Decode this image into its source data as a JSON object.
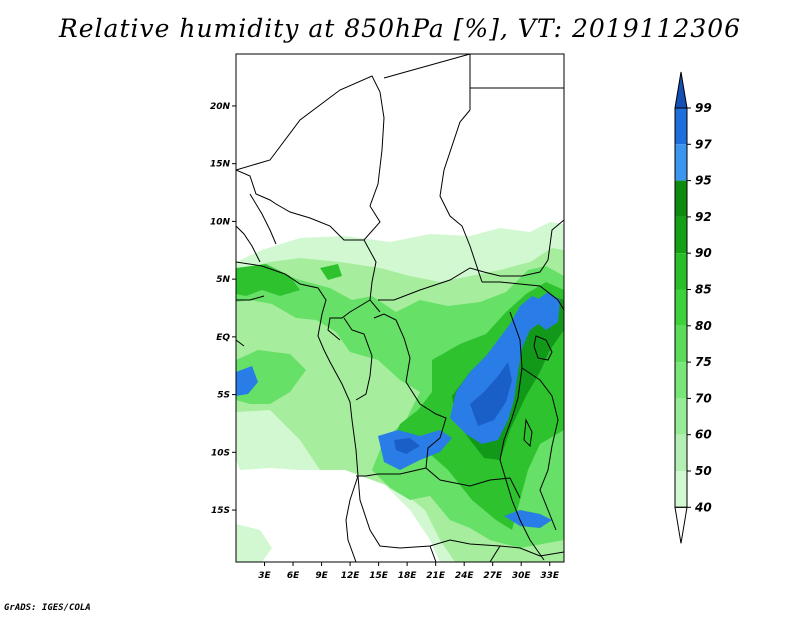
{
  "title": "Relative humidity at 850hPa [%], VT: 2019112306",
  "credit": "GrADS: IGES/COLA",
  "map": {
    "lon_range": [
      0,
      34.5
    ],
    "lat_range": [
      -19.5,
      24.5
    ],
    "lon_ticks": [
      {
        "value": 3,
        "label": "3E"
      },
      {
        "value": 6,
        "label": "6E"
      },
      {
        "value": 9,
        "label": "9E"
      },
      {
        "value": 12,
        "label": "12E"
      },
      {
        "value": 15,
        "label": "15E"
      },
      {
        "value": 18,
        "label": "18E"
      },
      {
        "value": 21,
        "label": "21E"
      },
      {
        "value": 24,
        "label": "24E"
      },
      {
        "value": 27,
        "label": "27E"
      },
      {
        "value": 30,
        "label": "30E"
      },
      {
        "value": 33,
        "label": "33E"
      }
    ],
    "lat_ticks": [
      {
        "value": 20,
        "label": "20N"
      },
      {
        "value": 15,
        "label": "15N"
      },
      {
        "value": 10,
        "label": "10N"
      },
      {
        "value": 5,
        "label": "5N"
      },
      {
        "value": 0,
        "label": "EQ"
      },
      {
        "value": -5,
        "label": "5S"
      },
      {
        "value": -10,
        "label": "10S"
      },
      {
        "value": -15,
        "label": "15S"
      }
    ]
  },
  "colorbar": {
    "levels": [
      "40",
      "50",
      "60",
      "70",
      "75",
      "80",
      "85",
      "90",
      "92",
      "95",
      "97",
      "99"
    ],
    "colors": [
      "#f0fcf0",
      "#d2f8d2",
      "#b4f0b4",
      "#96eb96",
      "#78e678",
      "#5adc5a",
      "#3cd23c",
      "#28be28",
      "#14a014",
      "#0f8c0f",
      "#3c96f0",
      "#1e6edc",
      "#1450b4"
    ]
  }
}
